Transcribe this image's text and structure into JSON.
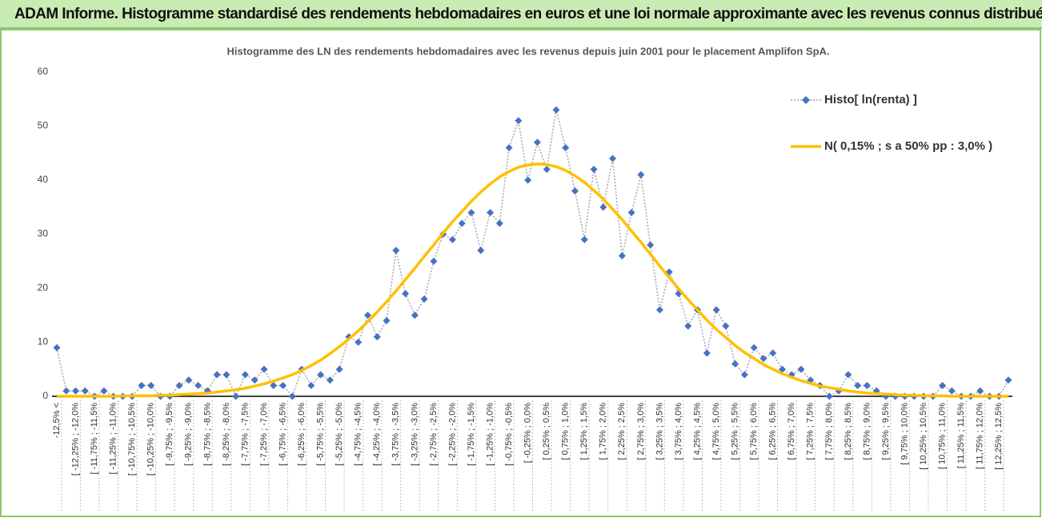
{
  "header_title": "ADAM Informe. Histogramme standardisé des rendements hebdomadaires en euros et une loi normale approximante avec les revenus connus distribués",
  "chart_data": {
    "type": "line",
    "title": "Histogramme des LN des rendements hebdomadaires avec les revenus depuis juin 2001 pour le placement Amplifon SpA.",
    "categories": [
      "-12,5% <",
      null,
      "[ -12,25% ; -12,0%",
      null,
      "[ -11,75% ; -11,5%",
      null,
      "[ -11,25% ; -11,0%",
      null,
      "[ -10,75% ; -10,5%",
      null,
      "[ -10,25% ; -10,0%",
      null,
      "[ -9,75% ; -9,5%",
      null,
      "[ -9,25% ; -9,0%",
      null,
      "[ -8,75% ; -8,5%",
      null,
      "[ -8,25% ; -8,0%",
      null,
      "[ -7,75% ; -7,5%",
      null,
      "[ -7,25% ; -7,0%",
      null,
      "[ -6,75% ; -6,5%",
      null,
      "[ -6,25% ; -6,0%",
      null,
      "[ -5,75% ; -5,5%",
      null,
      "[ -5,25% ; -5,0%",
      null,
      "[ -4,75% ; -4,5%",
      null,
      "[ -4,25% ; -4,0%",
      null,
      "[ -3,75% ; -3,5%",
      null,
      "[ -3,25% ; -3,0%",
      null,
      "[ -2,75% ; -2,5%",
      null,
      "[ -2,25% ; -2,0%",
      null,
      "[ -1,75% ; -1,5%",
      null,
      "[ -1,25% ; -1,0%",
      null,
      "[ -0,75% ; -0,5%",
      null,
      "[ -0,25% ; 0,0%",
      null,
      "[ 0,25% ; 0,5%",
      null,
      "[ 0,75% ; 1,0%",
      null,
      "[ 1,25% ; 1,5%",
      null,
      "[ 1,75% ; 2,0%",
      null,
      "[ 2,25% ; 2,5%",
      null,
      "[ 2,75% ; 3,0%",
      null,
      "[ 3,25% ; 3,5%",
      null,
      "[ 3,75% ; 4,0%",
      null,
      "[ 4,25% ; 4,5%",
      null,
      "[ 4,75% ; 5,0%",
      null,
      "[ 5,25% ; 5,5%",
      null,
      "[ 5,75% ; 6,0%",
      null,
      "[ 6,25% ; 6,5%",
      null,
      "[ 6,75% ; 7,0%",
      null,
      "[ 7,25% ; 7,5%",
      null,
      "[ 7,75% ; 8,0%",
      null,
      "[ 8,25% ; 8,5%",
      null,
      "[ 8,75% ; 9,0%",
      null,
      "[ 9,25% ; 9,5%",
      null,
      "[ 9,75% ; 10,0%",
      null,
      "[ 10,25% ; 10,5%",
      null,
      "[ 10,75% ; 11,0%",
      null,
      "[ 11,25% ; 11,5%",
      null,
      "[ 11,75% ; 12,0%",
      null,
      "[ 12,25% ; 12,5%",
      null
    ],
    "series": [
      {
        "name": "Histo[ ln(renta) ]",
        "color": "#4472c4",
        "line_color": "#a6a6a6",
        "values": [
          9,
          1,
          1,
          1,
          0,
          1,
          0,
          0,
          0,
          2,
          2,
          0,
          0,
          2,
          3,
          2,
          1,
          4,
          4,
          0,
          4,
          3,
          5,
          2,
          2,
          0,
          5,
          2,
          4,
          3,
          5,
          11,
          10,
          15,
          11,
          14,
          27,
          19,
          15,
          18,
          25,
          30,
          29,
          32,
          34,
          27,
          34,
          32,
          46,
          51,
          40,
          47,
          42,
          53,
          46,
          38,
          29,
          42,
          35,
          44,
          26,
          34,
          41,
          28,
          16,
          23,
          19,
          13,
          16,
          8,
          16,
          13,
          6,
          4,
          9,
          7,
          8,
          5,
          4,
          5,
          3,
          2,
          0,
          1,
          4,
          2,
          2,
          1,
          0,
          0,
          0,
          0,
          0,
          0,
          2,
          1,
          0,
          0,
          1,
          0,
          0,
          3
        ]
      },
      {
        "name": "N( 0,15% ; s a 50% pp : 3,0% )",
        "color": "#ffc000",
        "values": [
          0,
          0,
          0,
          0,
          0,
          0,
          0,
          0.1,
          0.1,
          0.1,
          0.1,
          0.2,
          0.2,
          0.3,
          0.4,
          0.5,
          0.6,
          0.8,
          1.0,
          1.2,
          1.5,
          1.9,
          2.3,
          2.8,
          3.4,
          4.0,
          4.8,
          5.7,
          6.7,
          7.9,
          9.2,
          10.6,
          12.1,
          13.8,
          15.6,
          17.5,
          19.5,
          21.6,
          23.7,
          25.9,
          28.0,
          30.2,
          32.3,
          34.2,
          36.1,
          37.8,
          39.3,
          40.6,
          41.6,
          42.4,
          42.8,
          43.0,
          42.9,
          42.5,
          41.8,
          40.8,
          39.6,
          38.1,
          36.5,
          34.6,
          32.7,
          30.6,
          28.5,
          26.3,
          24.1,
          22.0,
          19.9,
          17.9,
          16.0,
          14.1,
          12.4,
          10.9,
          9.4,
          8.1,
          7.0,
          5.9,
          5.0,
          4.2,
          3.5,
          2.9,
          2.4,
          1.9,
          1.6,
          1.3,
          1.0,
          0.8,
          0.6,
          0.5,
          0.4,
          0.3,
          0.2,
          0.2,
          0.1,
          0.1,
          0.1,
          0,
          0,
          0,
          0,
          0,
          0,
          0
        ]
      }
    ],
    "ylim": [
      0,
      60
    ],
    "yticks": [
      0,
      10,
      20,
      30,
      40,
      50,
      60
    ],
    "grid": false,
    "legend": "upper right"
  }
}
